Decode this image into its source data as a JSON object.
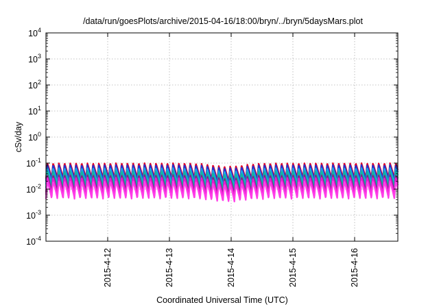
{
  "chart_data": {
    "type": "line",
    "title": "/data/run/goesPlots/archive/2015-04-16/18:00/bryn/../bryn/5daysMars.plot",
    "xlabel": "Coordinated Universal Time (UTC)",
    "ylabel": "cSv/day",
    "yscale": "log",
    "ylim": [
      0.0001,
      10000
    ],
    "xlim": [
      0,
      5.7
    ],
    "grid": true,
    "x_ticks": [
      {
        "x": 1.0,
        "label": "2015-4-12"
      },
      {
        "x": 2.0,
        "label": "2015-4-13"
      },
      {
        "x": 3.0,
        "label": "2015-4-14"
      },
      {
        "x": 4.0,
        "label": "2015-4-15"
      },
      {
        "x": 5.0,
        "label": "2015-4-16"
      }
    ],
    "y_ticks": [
      {
        "value": 0.0001,
        "mantissa": "10",
        "exp": "-4"
      },
      {
        "value": 0.001,
        "mantissa": "10",
        "exp": "-3"
      },
      {
        "value": 0.01,
        "mantissa": "10",
        "exp": "-2"
      },
      {
        "value": 0.1,
        "mantissa": "10",
        "exp": "-1"
      },
      {
        "value": 1,
        "mantissa": "10",
        "exp": "0"
      },
      {
        "value": 10,
        "mantissa": "10",
        "exp": "1"
      },
      {
        "value": 100,
        "mantissa": "10",
        "exp": "2"
      },
      {
        "value": 1000,
        "mantissa": "10",
        "exp": "3"
      },
      {
        "value": 10000,
        "mantissa": "10",
        "exp": "4"
      }
    ],
    "cycle_days": 0.0925,
    "series": [
      {
        "color": "#e0002a",
        "peak": 0.1,
        "trough": 0.025
      },
      {
        "color": "#2233d0",
        "peak": 0.085,
        "trough": 0.02
      },
      {
        "color": "#1aa6e6",
        "peak": 0.065,
        "trough": 0.015
      },
      {
        "color": "#13b3a0",
        "peak": 0.05,
        "trough": 0.011
      },
      {
        "color": "#7a2a88",
        "peak": 0.035,
        "trough": 0.0075
      },
      {
        "color": "#e81cd0",
        "peak": 0.028,
        "trough": 0.006
      },
      {
        "color": "#ff3ee8",
        "peak": 0.02,
        "trough": 0.0042
      }
    ]
  }
}
